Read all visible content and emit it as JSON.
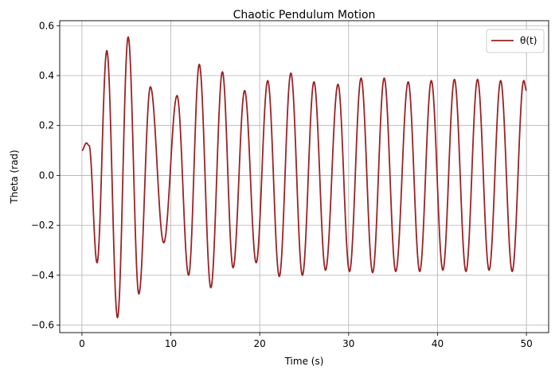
{
  "chart_data": {
    "type": "line",
    "title": "Chaotic Pendulum Motion",
    "xlabel": "Time (s)",
    "ylabel": "Theta (rad)",
    "xlim": [
      -2.5,
      52.5
    ],
    "ylim": [
      -0.63,
      0.62
    ],
    "xticks": [
      0,
      10,
      20,
      30,
      40,
      50
    ],
    "yticks": [
      -0.6,
      -0.4,
      -0.2,
      0.0,
      0.2,
      0.4,
      0.6
    ],
    "xtick_labels": [
      "0",
      "10",
      "20",
      "30",
      "40",
      "50"
    ],
    "ytick_labels": [
      "−0.6",
      "−0.4",
      "−0.2",
      "0.0",
      "0.2",
      "0.4",
      "0.6"
    ],
    "grid": true,
    "legend_position": "top-right",
    "series": [
      {
        "name": "θ(t)",
        "color": "#9b2226",
        "x": [
          0,
          0.5,
          0.8,
          1.7,
          2.8,
          4.0,
          5.2,
          6.4,
          7.7,
          9.2,
          10.7,
          12.0,
          13.2,
          14.5,
          15.8,
          17.0,
          18.3,
          19.6,
          20.9,
          22.2,
          23.5,
          24.8,
          26.1,
          27.4,
          28.8,
          30.1,
          31.4,
          32.7,
          34.0,
          35.3,
          36.7,
          38.0,
          39.3,
          40.6,
          41.9,
          43.2,
          44.5,
          45.8,
          47.1,
          48.4,
          49.7,
          50.0
        ],
        "y": [
          0.1,
          0.13,
          0.12,
          -0.35,
          0.5,
          -0.57,
          0.555,
          -0.475,
          0.355,
          -0.27,
          0.32,
          -0.4,
          0.445,
          -0.45,
          0.415,
          -0.37,
          0.34,
          -0.35,
          0.38,
          -0.405,
          0.41,
          -0.4,
          0.375,
          -0.38,
          0.365,
          -0.385,
          0.39,
          -0.39,
          0.39,
          -0.385,
          0.375,
          -0.385,
          0.38,
          -0.38,
          0.385,
          -0.385,
          0.385,
          -0.38,
          0.38,
          -0.385,
          0.38,
          0.34
        ]
      }
    ]
  }
}
